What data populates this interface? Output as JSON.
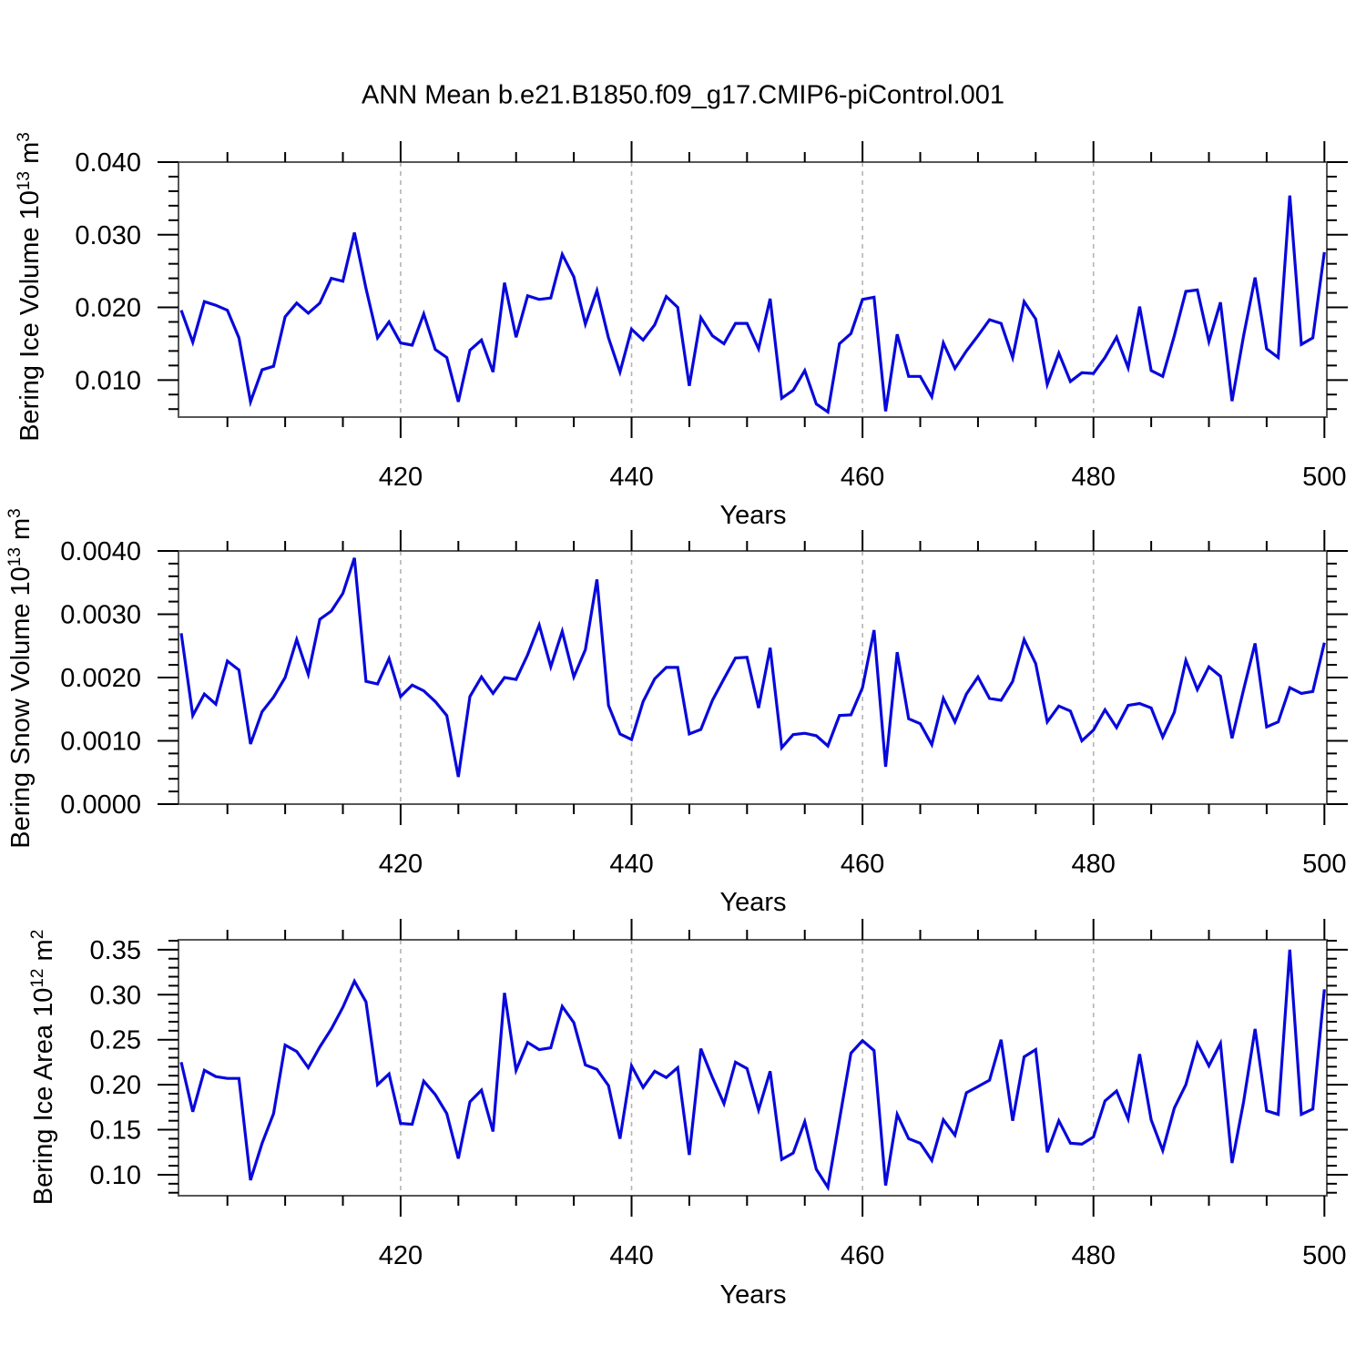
{
  "chart_data": {
    "type": "line",
    "title": "ANN Mean b.e21.B1850.f09_g17.CMIP6-piControl.001",
    "xlabel": "Years",
    "line_color": "#0808dc",
    "gridline_color": "#b4b4b4",
    "frame_color": "#575757",
    "tick_color": "#000000",
    "years": {
      "start": 401,
      "end": 500
    },
    "x": {
      "major_ticks": [
        420,
        440,
        460,
        480,
        500
      ],
      "major_tick_labels": [
        "420",
        "440",
        "460",
        "480",
        "500"
      ],
      "minor_step": 5,
      "gridlines": [
        420,
        440,
        460,
        480
      ]
    },
    "charts": [
      {
        "name": "bering-ice-volume",
        "ylabel": {
          "base": "Bering Ice Volume 10",
          "exp": "13",
          "unit": " m",
          "unit_exp": "3"
        },
        "ylim": [
          0.0049,
          0.04
        ],
        "y_major_ticks": [
          0.01,
          0.02,
          0.03,
          0.04
        ],
        "y_tick_labels": [
          "0.010",
          "0.020",
          "0.030",
          "0.040"
        ],
        "y_minor_step": 0.002,
        "values": [
          0.0196,
          0.0152,
          0.0208,
          0.0203,
          0.0196,
          0.0158,
          0.007,
          0.0114,
          0.0119,
          0.0187,
          0.0206,
          0.0192,
          0.0206,
          0.024,
          0.0236,
          0.0303,
          0.0226,
          0.0158,
          0.018,
          0.0151,
          0.0148,
          0.0191,
          0.0142,
          0.0131,
          0.007,
          0.0141,
          0.0155,
          0.0111,
          0.0234,
          0.0159,
          0.0216,
          0.0211,
          0.0213,
          0.0273,
          0.0242,
          0.0177,
          0.0223,
          0.0158,
          0.0111,
          0.017,
          0.0155,
          0.0176,
          0.0215,
          0.02,
          0.0092,
          0.0186,
          0.0161,
          0.015,
          0.0178,
          0.0178,
          0.0143,
          0.0212,
          0.0075,
          0.0086,
          0.0113,
          0.0067,
          0.0056,
          0.015,
          0.0164,
          0.0211,
          0.0214,
          0.0057,
          0.0163,
          0.0105,
          0.0105,
          0.0077,
          0.0151,
          0.0116,
          0.014,
          0.0161,
          0.0183,
          0.0178,
          0.0131,
          0.0208,
          0.0184,
          0.0094,
          0.0137,
          0.0098,
          0.011,
          0.0109,
          0.0131,
          0.0159,
          0.0117,
          0.0201,
          0.0113,
          0.0105,
          0.0161,
          0.0222,
          0.0224,
          0.0153,
          0.0207,
          0.0071,
          0.0161,
          0.0241,
          0.0143,
          0.0131,
          0.0354,
          0.0149,
          0.0158,
          0.0276
        ]
      },
      {
        "name": "bering-snow-volume",
        "ylabel": {
          "base": "Bering Snow Volume 10",
          "exp": "13",
          "unit": " m",
          "unit_exp": "3"
        },
        "ylim": [
          0.0,
          0.004
        ],
        "y_major_ticks": [
          0.0,
          0.001,
          0.002,
          0.003,
          0.004
        ],
        "y_tick_labels": [
          "0.0000",
          "0.0010",
          "0.0020",
          "0.0030",
          "0.0040"
        ],
        "y_minor_step": 0.0002,
        "values": [
          0.0027,
          0.0014,
          0.00174,
          0.00158,
          0.00226,
          0.00212,
          0.00095,
          0.00146,
          0.00169,
          0.002,
          0.0026,
          0.00205,
          0.00292,
          0.00305,
          0.00333,
          0.00389,
          0.00194,
          0.0019,
          0.0023,
          0.0017,
          0.00188,
          0.00179,
          0.00162,
          0.0014,
          0.00043,
          0.0017,
          0.00201,
          0.00175,
          0.002,
          0.00197,
          0.00236,
          0.00283,
          0.00217,
          0.00273,
          0.00201,
          0.00244,
          0.00355,
          0.00156,
          0.00111,
          0.00102,
          0.00162,
          0.00198,
          0.00216,
          0.00216,
          0.00111,
          0.00118,
          0.00164,
          0.00198,
          0.00231,
          0.00232,
          0.00152,
          0.00247,
          0.00089,
          0.0011,
          0.00112,
          0.00108,
          0.00092,
          0.0014,
          0.00141,
          0.00184,
          0.00275,
          0.00059,
          0.0024,
          0.00135,
          0.00127,
          0.00094,
          0.00167,
          0.0013,
          0.00174,
          0.00201,
          0.00167,
          0.00164,
          0.00194,
          0.0026,
          0.00222,
          0.0013,
          0.00155,
          0.00147,
          0.001,
          0.00117,
          0.00149,
          0.00121,
          0.00156,
          0.00159,
          0.00152,
          0.00106,
          0.00145,
          0.00227,
          0.00181,
          0.00217,
          0.00202,
          0.00104,
          0.00181,
          0.00254,
          0.00122,
          0.0013,
          0.00184,
          0.00175,
          0.00178,
          0.00255
        ]
      },
      {
        "name": "bering-ice-area",
        "ylabel": {
          "base": "Bering Ice Area 10",
          "exp": "12",
          "unit": " m",
          "unit_exp": "2"
        },
        "ylim": [
          0.0767,
          0.361
        ],
        "y_major_ticks": [
          0.1,
          0.15,
          0.2,
          0.25,
          0.3,
          0.35
        ],
        "y_tick_labels": [
          "0.10",
          "0.15",
          "0.20",
          "0.25",
          "0.30",
          "0.35"
        ],
        "y_minor_step": 0.01,
        "values": [
          0.225,
          0.17,
          0.216,
          0.209,
          0.207,
          0.207,
          0.094,
          0.135,
          0.168,
          0.244,
          0.237,
          0.219,
          0.242,
          0.262,
          0.286,
          0.315,
          0.292,
          0.2,
          0.212,
          0.157,
          0.156,
          0.204,
          0.189,
          0.168,
          0.118,
          0.181,
          0.194,
          0.148,
          0.302,
          0.216,
          0.247,
          0.239,
          0.241,
          0.287,
          0.269,
          0.222,
          0.217,
          0.199,
          0.14,
          0.221,
          0.197,
          0.215,
          0.208,
          0.219,
          0.122,
          0.24,
          0.208,
          0.179,
          0.225,
          0.218,
          0.172,
          0.215,
          0.117,
          0.124,
          0.159,
          0.106,
          0.086,
          0.161,
          0.235,
          0.249,
          0.238,
          0.088,
          0.167,
          0.14,
          0.135,
          0.116,
          0.161,
          0.144,
          0.191,
          0.198,
          0.205,
          0.25,
          0.16,
          0.231,
          0.239,
          0.125,
          0.16,
          0.135,
          0.134,
          0.142,
          0.182,
          0.193,
          0.162,
          0.234,
          0.161,
          0.127,
          0.174,
          0.2,
          0.246,
          0.221,
          0.246,
          0.113,
          0.181,
          0.262,
          0.171,
          0.167,
          0.35,
          0.167,
          0.173,
          0.306
        ]
      }
    ]
  }
}
